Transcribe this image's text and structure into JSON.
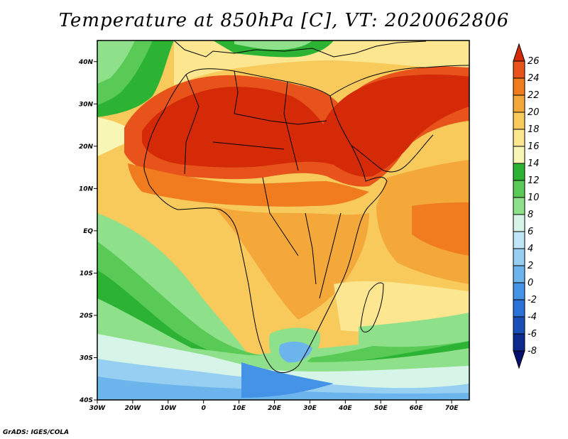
{
  "title": "Temperature at 850hPa [C], VT: 2020062806",
  "credit": "GrADS: IGES/COLA",
  "map": {
    "lat_labels": [
      "40N",
      "30N",
      "20N",
      "10N",
      "EQ",
      "10S",
      "20S",
      "30S",
      "40S"
    ],
    "lon_labels": [
      "30W",
      "20W",
      "10W",
      "0",
      "10E",
      "20E",
      "30E",
      "40E",
      "50E",
      "60E",
      "70E"
    ]
  },
  "colorbar": {
    "levels": [
      "26",
      "24",
      "22",
      "20",
      "18",
      "16",
      "14",
      "12",
      "10",
      "8",
      "6",
      "4",
      "2",
      "0",
      "-2",
      "-4",
      "-6",
      "-8"
    ],
    "colors": [
      "#d42a08",
      "#e8521b",
      "#f07c1f",
      "#f4a83a",
      "#f8ca5c",
      "#fce68f",
      "#f8f6b4",
      "#2cb334",
      "#58ca55",
      "#8ee08a",
      "#d6f5e8",
      "#bfe6f7",
      "#96cff2",
      "#6cb5ec",
      "#4493e6",
      "#2a72d8",
      "#1b4fb8",
      "#0d2a8c",
      "#06106e"
    ]
  }
}
